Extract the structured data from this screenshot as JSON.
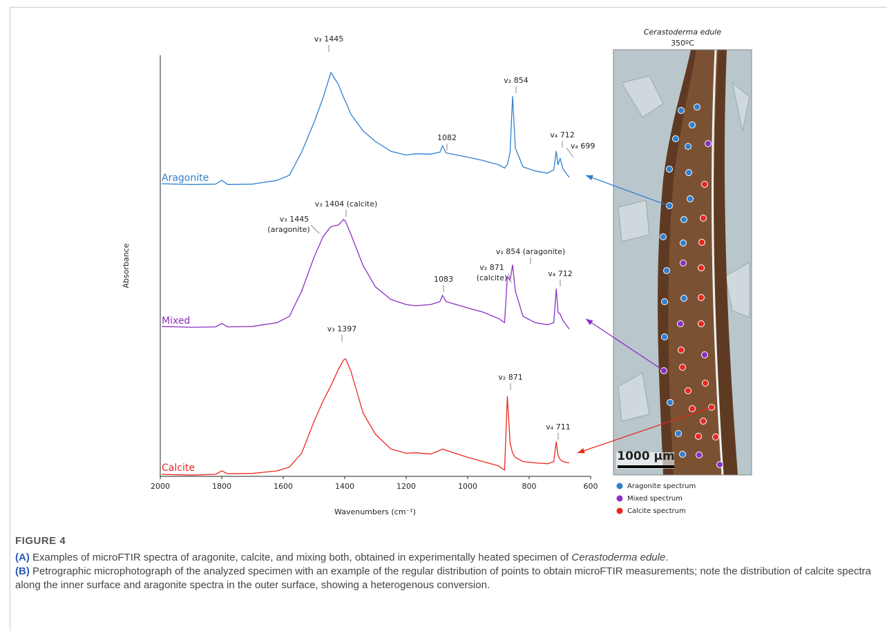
{
  "chart_data": {
    "type": "line",
    "xlabel": "Wavenumbers (cm⁻¹)",
    "ylabel": "Absorbance",
    "x": [
      1995,
      1900,
      1820,
      1800,
      1780,
      1700,
      1620,
      1580,
      1540,
      1500,
      1470,
      1445,
      1420,
      1404,
      1397,
      1380,
      1340,
      1300,
      1250,
      1200,
      1170,
      1120,
      1090,
      1082,
      1070,
      1000,
      950,
      900,
      880,
      871,
      862,
      854,
      845,
      820,
      780,
      740,
      720,
      712,
      706,
      699,
      690,
      670
    ],
    "xlim": [
      2000,
      600
    ],
    "xticks": [
      2000,
      1800,
      1600,
      1400,
      1200,
      1000,
      800,
      600
    ],
    "ylim": [
      0,
      100
    ],
    "series": [
      {
        "name": "Aragonite",
        "color": "#2f7fd0",
        "values": [
          69.5,
          69.3,
          69.4,
          70.3,
          69.3,
          69.4,
          70.3,
          71.5,
          77,
          84,
          90,
          95.9,
          93,
          90,
          89,
          86,
          82,
          79.5,
          77.2,
          76.3,
          76.6,
          76.5,
          77,
          78.5,
          76.8,
          75.8,
          75,
          74,
          73.2,
          74,
          77,
          90.2,
          78,
          73.5,
          72.5,
          72,
          72.8,
          77.2,
          74,
          75.5,
          73,
          71
        ]
      },
      {
        "name": "Mixed",
        "color": "#8a2fc4",
        "values": [
          35.6,
          35.4,
          35.5,
          36.3,
          35.5,
          35.6,
          36.5,
          38,
          44,
          52,
          57,
          59.3,
          59.7,
          61,
          60.5,
          57.5,
          50,
          45,
          42,
          40.8,
          40.5,
          40.8,
          41.5,
          43,
          41.5,
          40,
          39,
          37.5,
          36.5,
          47.5,
          46.5,
          50.2,
          44,
          38,
          36.5,
          36,
          36.5,
          44.5,
          39,
          38.5,
          37,
          35
        ]
      },
      {
        "name": "Calcite",
        "color": "#e8281e",
        "values": [
          0.5,
          0.3,
          0.5,
          1.3,
          0.6,
          0.7,
          1.3,
          2.2,
          5.5,
          13,
          18,
          21.5,
          25.5,
          27.6,
          27.9,
          25,
          15,
          10,
          6.5,
          5.5,
          5.6,
          5.3,
          6.2,
          6.5,
          6.2,
          4.5,
          3.5,
          2.5,
          1.5,
          18.9,
          8,
          5.5,
          4.5,
          3.5,
          3.2,
          3,
          3.5,
          8.2,
          5,
          4,
          3.5,
          3.2
        ]
      }
    ],
    "annotations": [
      "v₃ 1445",
      "1082",
      "v₂ 854",
      "v₄ 712",
      "v₄ 699",
      "v₃ 1404 (calcite)",
      "v₃ 1445",
      "(aragonite)",
      "1083",
      "v₂ 871",
      "(calcite)",
      "v₂ 854 (aragonite)",
      "v₄ 712",
      "v₃ 1397",
      "v₂ 871",
      "v₄ 711"
    ]
  },
  "figure": {
    "micrograph": {
      "title": "Cerastoderma edule",
      "subtitle": "350ºC",
      "scale_bar": "1000 µm",
      "legend": [
        {
          "label": "Aragonite spectrum",
          "color": "#2f7fd0"
        },
        {
          "label": "Mixed spectrum",
          "color": "#8a2fc4"
        },
        {
          "label": "Calcite spectrum",
          "color": "#e8281e"
        }
      ]
    },
    "caption": {
      "label": "FIGURE 4",
      "a_marker": "(A)",
      "a_text": " Examples of microFTIR spectra of aragonite, calcite, and mixing both, obtained in experimentally heated specimen of ",
      "a_species": "Cerastoderma edule",
      "a_end": ".",
      "b_marker": "(B)",
      "b_text": " Petrographic microphotograph of the analyzed specimen with an example of the regular distribution of points to obtain microFTIR measurements; note the distribution of calcite spectra along the inner surface and aragonite spectra in the outer surface, showing a heterogenous conversion."
    }
  }
}
